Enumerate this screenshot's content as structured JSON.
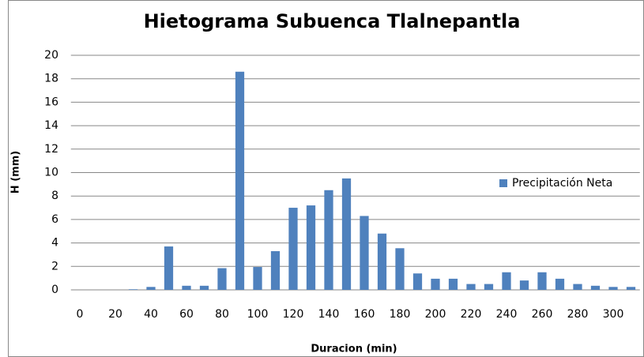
{
  "chart_data": {
    "type": "bar",
    "title": "Hietograma Subuenca Tlalnepantla",
    "x_label": "Duracion (min)",
    "y_label": "H (mm)",
    "categories": [
      0,
      null,
      20,
      null,
      40,
      null,
      60,
      null,
      80,
      null,
      100,
      null,
      120,
      null,
      140,
      null,
      160,
      null,
      180,
      null,
      200,
      null,
      220,
      null,
      240,
      null,
      260,
      null,
      280,
      null,
      300,
      null
    ],
    "series": [
      {
        "name": "Precipitación Neta",
        "color": "#4f81bd",
        "values": [
          0,
          0,
          0,
          0.05,
          0.25,
          3.7,
          0.35,
          0.35,
          1.85,
          18.6,
          1.95,
          3.3,
          7.0,
          7.2,
          8.5,
          9.5,
          6.3,
          4.8,
          3.55,
          1.4,
          0.95,
          0.95,
          0.5,
          0.5,
          1.5,
          0.8,
          1.5,
          0.95,
          0.5,
          0.35,
          0.25,
          0.25
        ]
      }
    ],
    "ylim": [
      0,
      20
    ],
    "yticks": [
      0,
      2,
      4,
      6,
      8,
      10,
      12,
      14,
      16,
      18,
      20
    ],
    "grid": true,
    "legend": "right"
  }
}
